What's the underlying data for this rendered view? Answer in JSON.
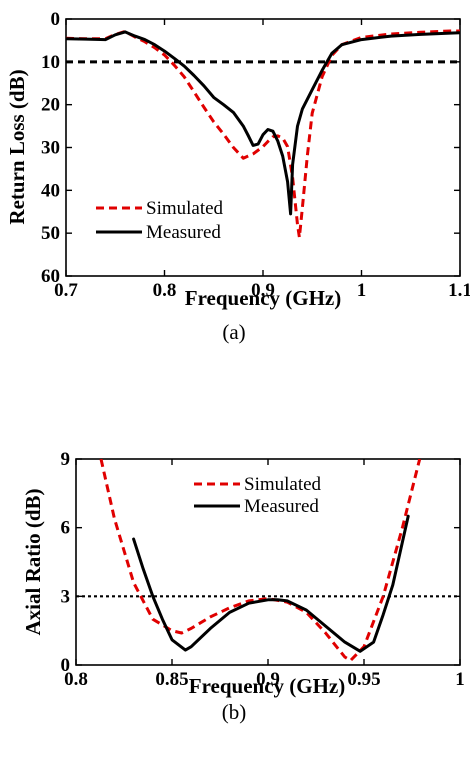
{
  "chart_data": [
    {
      "type": "line",
      "panel_label": "(a)",
      "xlabel": "Frequency (GHz)",
      "ylabel": "Return Loss (dB)",
      "xlim": [
        0.7,
        1.1
      ],
      "ylim": [
        0,
        60
      ],
      "y_inverted": true,
      "xticks": [
        0.7,
        0.8,
        0.9,
        1.0,
        1.1
      ],
      "xtick_labels": [
        "0.7",
        "0.8",
        "0.9",
        "1",
        "1.1"
      ],
      "yticks": [
        0,
        10,
        20,
        30,
        40,
        50,
        60
      ],
      "ytick_labels": [
        "0",
        "10",
        "20",
        "30",
        "40",
        "50",
        "60"
      ],
      "legend_position": "bottom-left",
      "reference_line": {
        "y": 10,
        "style": "dashed",
        "color": "#000000"
      },
      "series": [
        {
          "name": "Simulated",
          "color": "#e00000",
          "style": "dashed",
          "x": [
            0.7,
            0.72,
            0.74,
            0.75,
            0.76,
            0.77,
            0.78,
            0.79,
            0.8,
            0.81,
            0.82,
            0.83,
            0.84,
            0.85,
            0.86,
            0.87,
            0.88,
            0.89,
            0.9,
            0.905,
            0.91,
            0.915,
            0.92,
            0.925,
            0.93,
            0.935,
            0.937,
            0.94,
            0.945,
            0.95,
            0.96,
            0.97,
            0.98,
            1.0,
            1.03,
            1.06,
            1.09,
            1.1
          ],
          "y": [
            4.5,
            4.6,
            4.6,
            3.6,
            2.9,
            4.2,
            5.3,
            6.7,
            8.4,
            10.8,
            13.5,
            17.0,
            20.6,
            24.0,
            26.9,
            30.0,
            32.5,
            31.5,
            29.8,
            28.6,
            27.5,
            27.3,
            27.8,
            29.8,
            37.0,
            48.0,
            51.0,
            44.0,
            32.0,
            22.0,
            13.5,
            8.5,
            6.0,
            4.3,
            3.5,
            3.1,
            2.8,
            2.8
          ]
        },
        {
          "name": "Measured",
          "color": "#000000",
          "style": "solid",
          "x": [
            0.7,
            0.72,
            0.74,
            0.75,
            0.76,
            0.77,
            0.78,
            0.79,
            0.8,
            0.81,
            0.82,
            0.83,
            0.84,
            0.85,
            0.86,
            0.87,
            0.88,
            0.885,
            0.89,
            0.895,
            0.9,
            0.905,
            0.91,
            0.915,
            0.92,
            0.925,
            0.928,
            0.93,
            0.935,
            0.94,
            0.95,
            0.96,
            0.97,
            0.98,
            1.0,
            1.03,
            1.06,
            1.09,
            1.1
          ],
          "y": [
            4.6,
            4.7,
            4.8,
            3.7,
            3.0,
            4.0,
            4.8,
            6.0,
            7.5,
            9.2,
            11.0,
            13.2,
            15.6,
            18.3,
            20.0,
            21.8,
            25.0,
            27.2,
            29.5,
            29.2,
            27.0,
            25.8,
            26.2,
            28.5,
            32.0,
            38.0,
            45.5,
            34.0,
            25.0,
            21.0,
            16.5,
            12.0,
            8.0,
            6.0,
            4.8,
            4.0,
            3.6,
            3.3,
            3.2
          ]
        }
      ]
    },
    {
      "type": "line",
      "panel_label": "(b)",
      "xlabel": "Frequency (GHz)",
      "ylabel": "Axial Ratio (dB)",
      "xlim": [
        0.8,
        1.0
      ],
      "ylim": [
        0,
        9
      ],
      "xticks": [
        0.8,
        0.85,
        0.9,
        0.95,
        1.0
      ],
      "xtick_labels": [
        "0.8",
        "0.85",
        "0.9",
        "0.95",
        "1"
      ],
      "yticks": [
        0,
        3,
        6,
        9
      ],
      "ytick_labels": [
        "0",
        "3",
        "6",
        "9"
      ],
      "legend_position": "top-center",
      "reference_line": {
        "y": 3,
        "style": "dotted",
        "color": "#000000"
      },
      "series": [
        {
          "name": "Simulated",
          "color": "#e00000",
          "style": "dashed",
          "x": [
            0.813,
            0.82,
            0.83,
            0.84,
            0.85,
            0.855,
            0.86,
            0.87,
            0.88,
            0.89,
            0.9,
            0.91,
            0.92,
            0.93,
            0.94,
            0.943,
            0.95,
            0.96,
            0.97,
            0.979
          ],
          "y": [
            9.0,
            6.4,
            3.6,
            2.0,
            1.5,
            1.4,
            1.6,
            2.1,
            2.5,
            2.8,
            2.9,
            2.75,
            2.3,
            1.4,
            0.35,
            0.2,
            0.8,
            3.0,
            6.0,
            9.0
          ]
        },
        {
          "name": "Measured",
          "color": "#000000",
          "style": "solid",
          "x": [
            0.83,
            0.835,
            0.84,
            0.845,
            0.85,
            0.857,
            0.86,
            0.87,
            0.88,
            0.89,
            0.9,
            0.905,
            0.91,
            0.92,
            0.93,
            0.94,
            0.948,
            0.955,
            0.96,
            0.965,
            0.973
          ],
          "y": [
            5.5,
            4.2,
            3.0,
            2.0,
            1.1,
            0.65,
            0.8,
            1.6,
            2.3,
            2.7,
            2.85,
            2.85,
            2.8,
            2.4,
            1.7,
            1.0,
            0.6,
            1.0,
            2.2,
            3.5,
            6.5
          ]
        }
      ]
    }
  ]
}
